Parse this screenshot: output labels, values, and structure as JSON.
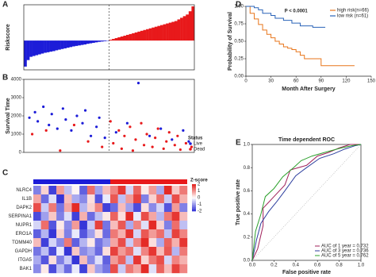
{
  "chart_data": [
    {
      "type": "waterfall",
      "panel": "A",
      "y_label": "Riskscore",
      "negative_color": "#1c1cd8",
      "positive_color": "#e8191b",
      "ylim": [
        -1.8,
        2.2
      ],
      "values": [
        -1.6,
        -1.2,
        -1.0,
        -0.95,
        -0.9,
        -0.85,
        -0.8,
        -0.75,
        -0.72,
        -0.68,
        -0.65,
        -0.6,
        -0.56,
        -0.52,
        -0.48,
        -0.44,
        -0.4,
        -0.36,
        -0.33,
        -0.3,
        -0.27,
        -0.24,
        -0.2,
        -0.17,
        -0.14,
        -0.11,
        -0.08,
        -0.06,
        -0.04,
        -0.02,
        0.05,
        0.1,
        0.15,
        0.2,
        0.25,
        0.3,
        0.35,
        0.4,
        0.45,
        0.5,
        0.55,
        0.6,
        0.65,
        0.7,
        0.75,
        0.8,
        0.85,
        0.9,
        0.95,
        1.0,
        1.05,
        1.1,
        1.15,
        1.2,
        1.3,
        1.4,
        1.5,
        1.6,
        1.8,
        2.1
      ]
    },
    {
      "type": "scatter",
      "panel": "B",
      "y_label": "Survival Time",
      "legend_title": "Status",
      "xlim": [
        0,
        61
      ],
      "ylim": [
        0,
        4000
      ],
      "yticks": [
        0,
        1000,
        2000,
        3000,
        4000
      ],
      "series": [
        {
          "name": "Live",
          "color": "#1c1cd8",
          "x": [
            2,
            4,
            5,
            7,
            9,
            10,
            12,
            14,
            15,
            17,
            19,
            21,
            22,
            24,
            26,
            27,
            29,
            33,
            37,
            41,
            45,
            49,
            53,
            57,
            59
          ],
          "values": [
            1900,
            2200,
            1700,
            2500,
            1500,
            2100,
            1300,
            2400,
            1800,
            1200,
            2000,
            1600,
            2300,
            900,
            1400,
            1900,
            800,
            1100,
            1600,
            3800,
            900,
            1300,
            700,
            1200,
            600
          ]
        },
        {
          "name": "Dead",
          "color": "#e8191b",
          "x": [
            3,
            8,
            13,
            18,
            23,
            28,
            31,
            32,
            34,
            35,
            36,
            38,
            39,
            40,
            42,
            43,
            44,
            46,
            47,
            48,
            50,
            51,
            52,
            54,
            55,
            56,
            58,
            60
          ],
          "values": [
            1000,
            1200,
            100,
            1500,
            600,
            300,
            1700,
            500,
            1200,
            200,
            900,
            1400,
            100,
            700,
            1600,
            400,
            1000,
            300,
            800,
            1300,
            200,
            600,
            1100,
            400,
            900,
            150,
            500,
            300
          ]
        }
      ]
    },
    {
      "type": "heatmap",
      "panel": "C",
      "legend_title": "Z-score",
      "colors": [
        "#2b2bd6",
        "#ffffff",
        "#e3201b"
      ],
      "zlim": [
        -2,
        2
      ],
      "zticks": [
        2,
        1,
        0,
        -1,
        -2
      ],
      "group_colors": [
        "#1c1cd8",
        "#e8191b"
      ],
      "rows": [
        "NLRC4",
        "IL1B",
        "DAPK2",
        "SERPINA1",
        "NUPR1",
        "ERO1A",
        "TOMM40",
        "GAPDH",
        "ITGA5",
        "BAK1"
      ],
      "values": [
        [
          -1.2,
          0.4,
          -1.8,
          0.9,
          -0.6,
          0.1,
          -1.5,
          1.3,
          -0.9,
          0.6,
          1.1,
          1.8,
          -0.4,
          1.4,
          0.2,
          0.9,
          -0.8,
          1.9,
          0.5,
          1.2
        ],
        [
          0.8,
          -1.4,
          -0.3,
          -1.9,
          0.6,
          -0.8,
          -1.1,
          0.3,
          -1.6,
          -0.2,
          1.5,
          -0.6,
          0.9,
          1.7,
          -1.2,
          0.4,
          1.3,
          -0.5,
          1.6,
          0.7
        ],
        [
          1.6,
          -0.5,
          1.2,
          -1.3,
          0.8,
          1.9,
          -0.7,
          0.4,
          1.1,
          -1.8,
          -1.4,
          0.6,
          -0.9,
          -1.7,
          0.3,
          -1.1,
          -0.4,
          -1.6,
          0.9,
          -1.2
        ],
        [
          -1.7,
          -0.9,
          0.5,
          -1.2,
          -0.3,
          -1.8,
          0.7,
          -1.4,
          -0.6,
          0.2,
          1.4,
          0.3,
          1.9,
          -0.2,
          1.6,
          0.8,
          -0.7,
          1.2,
          1.8,
          0.6
        ],
        [
          -0.4,
          1.3,
          -1.6,
          0.2,
          -1.1,
          0.9,
          -1.9,
          -0.5,
          1.7,
          -1.3,
          0.6,
          1.5,
          -0.8,
          1.1,
          -0.3,
          1.9,
          0.4,
          -1.2,
          1.3,
          -0.6
        ],
        [
          -1.5,
          -0.7,
          -1.9,
          0.4,
          -1.2,
          -0.2,
          -1.6,
          -0.9,
          0.3,
          -1.4,
          1.2,
          0.7,
          1.8,
          -0.4,
          1.5,
          0.9,
          1.3,
          -0.6,
          1.7,
          1.1
        ],
        [
          0.6,
          -1.8,
          -0.4,
          -1.1,
          1.2,
          -1.5,
          -0.7,
          0.2,
          -1.3,
          -0.9,
          0.8,
          1.6,
          -0.5,
          1.1,
          1.9,
          0.3,
          -0.8,
          1.4,
          0.7,
          1.8
        ],
        [
          -1.3,
          -0.6,
          -1.7,
          -0.2,
          -1.9,
          0.5,
          -1.1,
          -0.8,
          -1.4,
          0.3,
          1.7,
          0.9,
          1.3,
          -0.3,
          1.1,
          1.8,
          0.6,
          1.5,
          -0.7,
          1.2
        ],
        [
          -0.8,
          -1.6,
          0.3,
          -1.2,
          -0.5,
          -1.9,
          0.6,
          -1.1,
          -0.3,
          -1.5,
          0.9,
          1.4,
          -0.6,
          1.8,
          0.4,
          1.2,
          1.6,
          -0.4,
          1.1,
          0.7
        ],
        [
          -1.1,
          0.2,
          -1.7,
          -0.6,
          -1.4,
          -0.2,
          -1.8,
          0.5,
          -0.9,
          -1.3,
          1.6,
          -0.5,
          1.2,
          0.8,
          1.9,
          -0.3,
          1.4,
          0.6,
          1.7,
          1.1
        ]
      ]
    },
    {
      "type": "km",
      "panel": "D",
      "annotation": "P < 0.0001",
      "x_label": "Month After Surgery",
      "y_label": "Probability of Survival",
      "xlim": [
        0,
        150
      ],
      "ylim": [
        0,
        1
      ],
      "xticks": [
        0,
        30,
        60,
        90,
        120,
        150
      ],
      "yticks": [
        {
          "value": 0,
          "label": "0.00"
        },
        0.25,
        {
          "value": 0.5,
          "label": "0.50"
        },
        0.75,
        {
          "value": 1,
          "label": "1.00"
        }
      ],
      "series": [
        {
          "name": "high risk(n=66)",
          "color": "#e8761b",
          "x": [
            0,
            5,
            10,
            15,
            20,
            25,
            30,
            35,
            40,
            45,
            50,
            55,
            60,
            65,
            70,
            80,
            90,
            95,
            130
          ],
          "values": [
            1,
            0.9,
            0.82,
            0.74,
            0.66,
            0.6,
            0.55,
            0.5,
            0.46,
            0.42,
            0.4,
            0.38,
            0.35,
            0.3,
            0.25,
            0.25,
            0.15,
            0.15,
            0.15
          ]
        },
        {
          "name": "low risk (n=61)",
          "color": "#2a63b8",
          "x": [
            0,
            10,
            15,
            20,
            30,
            35,
            45,
            55,
            65,
            80,
            95
          ],
          "values": [
            1,
            0.98,
            0.95,
            0.9,
            0.87,
            0.83,
            0.8,
            0.76,
            0.72,
            0.7,
            0.7
          ]
        }
      ]
    },
    {
      "type": "roc",
      "panel": "E",
      "title": "Time dependent ROC",
      "x_label": "False positive rate",
      "y_label": "True positive rate",
      "xlim": [
        0,
        1
      ],
      "ylim": [
        0,
        1
      ],
      "xticks": [
        {
          "value": 0,
          "label": "0.0"
        },
        0.2,
        0.4,
        0.6,
        0.8,
        {
          "value": 1,
          "label": "1.0"
        }
      ],
      "yticks": [
        {
          "value": 0,
          "label": "0.0"
        },
        0.2,
        0.4,
        0.6,
        0.8,
        {
          "value": 1,
          "label": "1.0"
        }
      ],
      "series": [
        {
          "name": "AUC of 1 year = 0.732",
          "color": "#a0205a",
          "x": [
            0,
            0.05,
            0.1,
            0.1,
            0.2,
            0.3,
            0.35,
            0.5,
            0.6,
            0.7,
            0.8,
            0.9,
            1
          ],
          "values": [
            0,
            0.1,
            0.3,
            0.45,
            0.55,
            0.65,
            0.78,
            0.82,
            0.9,
            0.93,
            0.97,
            1,
            1
          ]
        },
        {
          "name": "AUC of 3 year = 0.736",
          "color": "#2c3e9e",
          "x": [
            0,
            0.04,
            0.08,
            0.15,
            0.22,
            0.3,
            0.4,
            0.5,
            0.62,
            0.75,
            0.85,
            0.95,
            1
          ],
          "values": [
            0,
            0.18,
            0.32,
            0.42,
            0.5,
            0.6,
            0.73,
            0.8,
            0.88,
            0.92,
            0.96,
            0.99,
            1
          ]
        },
        {
          "name": "AUC of 5 year = 0.762",
          "color": "#2ca02c",
          "x": [
            0,
            0.03,
            0.08,
            0.12,
            0.2,
            0.28,
            0.38,
            0.45,
            0.55,
            0.7,
            0.82,
            0.92,
            1
          ],
          "values": [
            0,
            0.25,
            0.4,
            0.55,
            0.62,
            0.72,
            0.8,
            0.86,
            0.9,
            0.94,
            0.97,
            0.99,
            1
          ]
        }
      ]
    }
  ]
}
